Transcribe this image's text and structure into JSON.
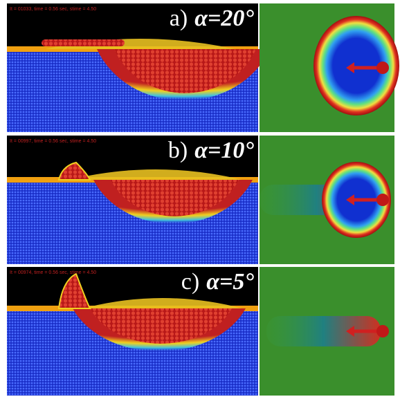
{
  "panels": [
    {
      "label": "a)",
      "angle": "α=20°",
      "info": "It = 01033, time =    0.56 sec, stime =    4.50"
    },
    {
      "label": "b)",
      "angle": "α=10°",
      "info": "It = 00997, time =    0.56 sec, stime =    4.50"
    },
    {
      "label": "c)",
      "angle": "α=5°",
      "info": "It = 00974, time =    0.56 sec, stime =    4.50"
    }
  ]
}
